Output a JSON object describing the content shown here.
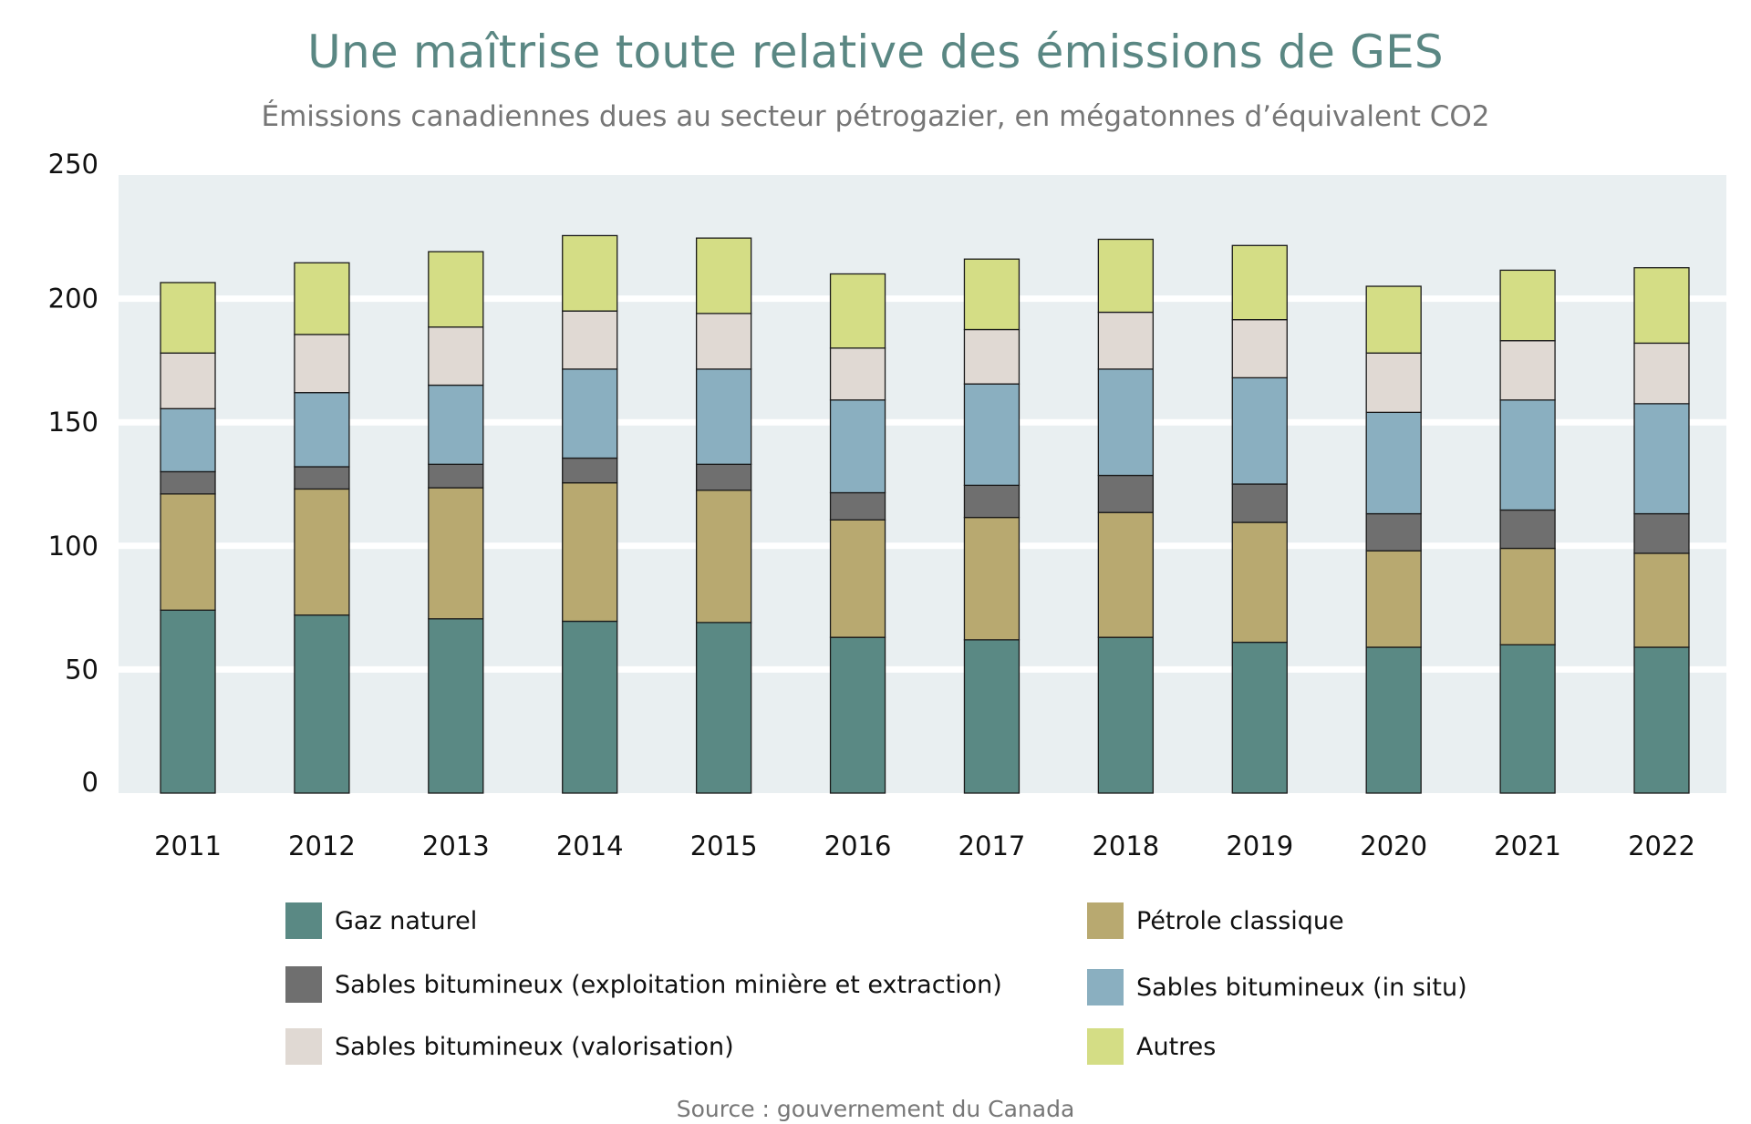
{
  "chart_data": {
    "type": "bar",
    "stacked": true,
    "title": "Une maîtrise toute relative des émissions de GES",
    "subtitle": "Émissions canadiennes dues au secteur pétrogazier, en mégatonnes d’équivalent CO2",
    "xlabel": "",
    "ylabel": "",
    "ylim": [
      0,
      250
    ],
    "yticks": [
      0,
      50,
      100,
      150,
      200,
      250
    ],
    "ytick_labels": [
      "0",
      "50",
      "100",
      "150",
      "200",
      "250"
    ],
    "grid": true,
    "legend_position": "bottom",
    "categories": [
      "2011",
      "2012",
      "2013",
      "2014",
      "2015",
      "2016",
      "2017",
      "2018",
      "2019",
      "2020",
      "2021",
      "2022"
    ],
    "series": [
      {
        "name": "Gaz naturel",
        "color": "#5a8984",
        "values": [
          74,
          72,
          70.5,
          69.5,
          69,
          63,
          62,
          63,
          61,
          59,
          60,
          59
        ]
      },
      {
        "name": "Pétrole classique",
        "color": "#b8a970",
        "values": [
          47,
          51,
          53,
          56,
          53.5,
          47.5,
          49.5,
          50.5,
          48.5,
          39,
          39,
          38
        ]
      },
      {
        "name": "Sables bitumineux (exploitation minière et extraction)",
        "color": "#6f6f6f",
        "values": [
          9,
          9,
          9.5,
          10,
          10.5,
          11,
          13,
          15,
          15.5,
          15,
          15.5,
          16
        ]
      },
      {
        "name": "Sables bitumineux (in situ)",
        "color": "#8aafc0",
        "values": [
          25.5,
          30,
          32,
          36,
          38.5,
          37.5,
          41,
          43,
          43,
          41,
          44.5,
          44.5
        ]
      },
      {
        "name": "Sables bitumineux (valorisation)",
        "color": "#e0d9d3",
        "values": [
          22.5,
          23.5,
          23.5,
          23.5,
          22.5,
          21,
          22,
          23,
          23.5,
          24,
          24,
          24.5
        ]
      },
      {
        "name": "Autres",
        "color": "#d4dd85",
        "values": [
          28.5,
          29,
          30.5,
          30.5,
          30.5,
          30,
          28.5,
          29.5,
          30,
          27,
          28.5,
          30.5
        ]
      }
    ],
    "legend": [
      {
        "label": "Gaz naturel",
        "color": "#5a8984"
      },
      {
        "label": "Pétrole classique",
        "color": "#b8a970"
      },
      {
        "label": "Sables bitumineux (exploitation minière et extraction)",
        "color": "#6f6f6f"
      },
      {
        "label": "Sables bitumineux (in situ)",
        "color": "#8aafc0"
      },
      {
        "label": "Sables bitumineux (valorisation)",
        "color": "#e0d9d3"
      },
      {
        "label": "Autres",
        "color": "#d4dd85"
      }
    ],
    "source": "Source : gouvernement du Canada"
  },
  "colors": {
    "title": "#5a8783",
    "plot_background": "#e9eff1",
    "gridline": "#ffffff"
  }
}
